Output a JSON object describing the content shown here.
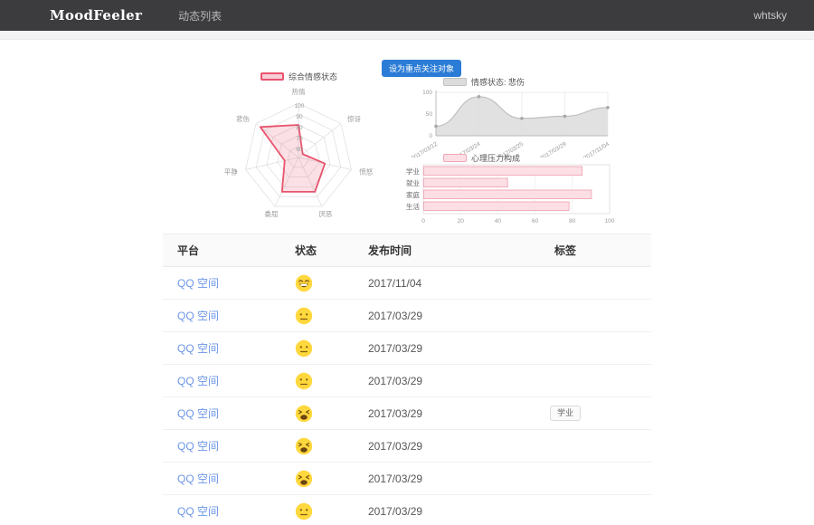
{
  "navbar": {
    "brand": "MoodFeeler",
    "menu": [
      {
        "label": "动态列表"
      }
    ],
    "user": "whtsky"
  },
  "actions": {
    "focus_button_label": "设为重点关注对象"
  },
  "colors": {
    "accent_blue": "#2b7cd6",
    "link_blue": "#6c96e8"
  },
  "chart_data": [
    {
      "type": "radar",
      "title": "综合情感状态",
      "indicators": [
        "热情",
        "惊讶",
        "愤怒",
        "厌恶",
        "委屈",
        "平静",
        "悲伤"
      ],
      "values": [
        80,
        55,
        75,
        85,
        85,
        63,
        95
      ],
      "scale_min": 50,
      "scale_max": 100,
      "ring_values": [
        60,
        70,
        80,
        90,
        100
      ],
      "legend_position": "top",
      "stroke_color": "#e8546e",
      "fill_color": "#f7cdd6"
    },
    {
      "type": "area",
      "title": "情感状态: 悲伤",
      "x": [
        "2017/03/12",
        "2017/03/24",
        "2017/03/25",
        "2017/03/29",
        "2017/11/04"
      ],
      "values": [
        22,
        90,
        40,
        45,
        65
      ],
      "ylim": [
        0,
        100
      ],
      "yticks": [
        0,
        50,
        100
      ],
      "grid": "vertical-splitlines",
      "legend_position": "top",
      "stroke_color": "#c0c0c0",
      "fill_color": "#dcdcdc"
    },
    {
      "type": "bar",
      "title": "心理压力构成",
      "orientation": "horizontal",
      "categories": [
        "学业",
        "就业",
        "家庭",
        "生活"
      ],
      "values": [
        85,
        45,
        90,
        78
      ],
      "xlim": [
        0,
        100
      ],
      "xticks": [
        0,
        20,
        40,
        60,
        80,
        100
      ],
      "legend_position": "top",
      "stroke_color": "#f0a6b6",
      "fill_color": "#fbdfe5"
    }
  ],
  "table": {
    "headers": [
      "平台",
      "状态",
      "发布时间",
      "标签"
    ],
    "rows": [
      {
        "platform": "QQ 空间",
        "emoji": "grinning",
        "date": "2017/11/04",
        "tag": ""
      },
      {
        "platform": "QQ 空间",
        "emoji": "neutral",
        "date": "2017/03/29",
        "tag": ""
      },
      {
        "platform": "QQ 空间",
        "emoji": "neutral",
        "date": "2017/03/29",
        "tag": ""
      },
      {
        "platform": "QQ 空间",
        "emoji": "neutral",
        "date": "2017/03/29",
        "tag": ""
      },
      {
        "platform": "QQ 空间",
        "emoji": "tired",
        "date": "2017/03/29",
        "tag": "学业"
      },
      {
        "platform": "QQ 空间",
        "emoji": "tired",
        "date": "2017/03/29",
        "tag": ""
      },
      {
        "platform": "QQ 空间",
        "emoji": "tired",
        "date": "2017/03/29",
        "tag": ""
      },
      {
        "platform": "QQ 空间",
        "emoji": "neutral",
        "date": "2017/03/29",
        "tag": ""
      }
    ]
  }
}
